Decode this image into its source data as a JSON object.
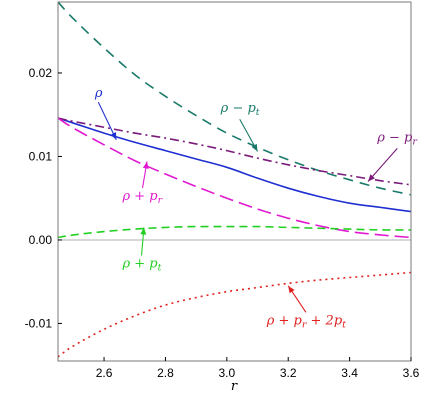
{
  "chart_data": {
    "type": "line",
    "title": "",
    "xlabel": "r",
    "ylabel": "",
    "xlim": [
      2.45,
      3.6
    ],
    "ylim": [
      -0.0145,
      0.0285
    ],
    "xticks": [
      2.6,
      2.8,
      3.0,
      3.2,
      3.4,
      3.6
    ],
    "xtick_labels": [
      "2.6",
      "2.8",
      "3.0",
      "3.2",
      "3.4",
      "3.6"
    ],
    "yticks": [
      -0.01,
      0.0,
      0.01,
      0.02
    ],
    "ytick_labels": [
      "-0.01",
      "0.00",
      "0.01",
      "0.02"
    ],
    "grid": false,
    "x": [
      2.45,
      2.5,
      2.6,
      2.7,
      2.8,
      2.9,
      3.0,
      3.1,
      3.2,
      3.3,
      3.4,
      3.5,
      3.6
    ],
    "series": [
      {
        "name": "ρ − p_t",
        "color": "#1a7a6a",
        "dash": "10,7",
        "values": [
          0.0285,
          0.0265,
          0.023,
          0.0198,
          0.0172,
          0.0149,
          0.0128,
          0.0111,
          0.0096,
          0.0083,
          0.0072,
          0.0062,
          0.0054
        ]
      },
      {
        "name": "ρ",
        "color": "#1f2fd0",
        "dash": "",
        "values": [
          0.0146,
          0.014,
          0.0128,
          0.0117,
          0.0107,
          0.0097,
          0.0087,
          0.0074,
          0.0062,
          0.0052,
          0.0044,
          0.0039,
          0.0034
        ]
      },
      {
        "name": "ρ − p_r",
        "color": "#7a1a7a",
        "dash": "9,4,2,4",
        "values": [
          0.0146,
          0.0142,
          0.0135,
          0.0128,
          0.0122,
          0.0115,
          0.0107,
          0.0098,
          0.009,
          0.0083,
          0.0077,
          0.0071,
          0.0066
        ]
      },
      {
        "name": "ρ + p_r",
        "color": "#e01ad0",
        "dash": "14,6",
        "values": [
          0.0146,
          0.0134,
          0.0114,
          0.0095,
          0.0079,
          0.0064,
          0.005,
          0.0037,
          0.0026,
          0.0017,
          0.001,
          0.0006,
          0.0003
        ]
      },
      {
        "name": "ρ + p_t",
        "color": "#22d022",
        "dash": "8,5",
        "values": [
          0.0003,
          0.0006,
          0.001,
          0.0013,
          0.0015,
          0.0016,
          0.0016,
          0.0016,
          0.0015,
          0.0014,
          0.0013,
          0.0012,
          0.0012
        ]
      },
      {
        "name": "ρ + p_r + 2p_t",
        "color": "#e02020",
        "dash": "2,4",
        "values": [
          -0.014,
          -0.0127,
          -0.0107,
          -0.0091,
          -0.0078,
          -0.0069,
          -0.0062,
          -0.0057,
          -0.0052,
          -0.0048,
          -0.0045,
          -0.0042,
          -0.0039
        ]
      }
    ],
    "annotations": [
      {
        "series": "ρ",
        "color": "#1f2fd0",
        "parts": [
          [
            "ρ",
            ""
          ]
        ],
        "at": [
          2.57,
          0.0171
        ],
        "arrow_to": [
          2.64,
          0.012
        ]
      },
      {
        "series": "ρ − p_t",
        "color": "#1a7a6a",
        "parts": [
          [
            "ρ − p",
            ""
          ],
          [
            "t",
            "sub"
          ]
        ],
        "at": [
          2.98,
          0.0153
        ],
        "arrow_to": [
          3.1,
          0.0106
        ]
      },
      {
        "series": "ρ − p_r",
        "color": "#7a1a7a",
        "parts": [
          [
            "ρ − p",
            ""
          ],
          [
            "r",
            "sub"
          ]
        ],
        "at": [
          3.49,
          0.0118
        ],
        "arrow_to": [
          3.46,
          0.007
        ]
      },
      {
        "series": "ρ + p_r",
        "color": "#e01ad0",
        "parts": [
          [
            "ρ + p",
            ""
          ],
          [
            "r",
            "sub"
          ]
        ],
        "at": [
          2.66,
          0.0048
        ],
        "arrow_to": [
          2.74,
          0.0094
        ]
      },
      {
        "series": "ρ + p_t",
        "color": "#22d022",
        "parts": [
          [
            "ρ + p",
            ""
          ],
          [
            "t",
            "sub"
          ]
        ],
        "at": [
          2.66,
          -0.0033
        ],
        "arrow_to": [
          2.73,
          0.0015
        ]
      },
      {
        "series": "ρ + p_r + 2p_t",
        "color": "#e02020",
        "parts": [
          [
            "ρ + p",
            ""
          ],
          [
            "r",
            "sub"
          ],
          [
            " + 2p",
            ""
          ],
          [
            "t",
            "sub"
          ]
        ],
        "at": [
          3.13,
          -0.0101
        ],
        "arrow_to": [
          3.2,
          -0.0055
        ]
      }
    ]
  }
}
